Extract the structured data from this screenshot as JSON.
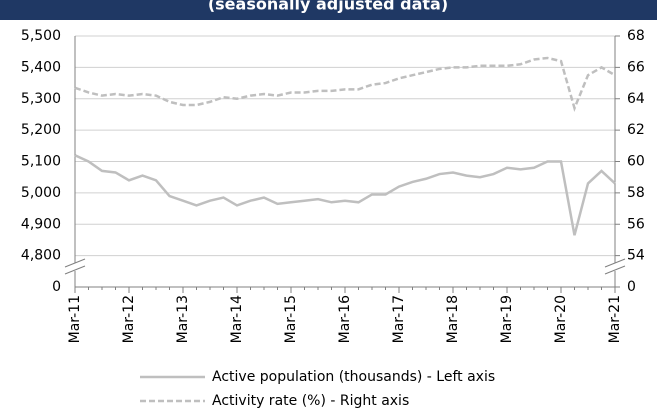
{
  "chart_data": {
    "type": "line",
    "title": "(seasonally adjusted data)",
    "categories": [
      "Mar-11",
      null,
      null,
      null,
      "Mar-12",
      null,
      null,
      null,
      "Mar-13",
      null,
      null,
      null,
      "Mar-14",
      null,
      null,
      null,
      "Mar-15",
      null,
      null,
      null,
      "Mar-16",
      null,
      null,
      null,
      "Mar-17",
      null,
      null,
      null,
      "Mar-18",
      null,
      null,
      null,
      "Mar-19",
      null,
      null,
      null,
      "Mar-20",
      null,
      null,
      null,
      "Mar-21"
    ],
    "series": [
      {
        "name": "Active population (thousands) - Left axis",
        "color": "#bfbfbf",
        "dash": false,
        "values": [
          5120,
          5100,
          5070,
          5065,
          5040,
          5055,
          5040,
          4990,
          4975,
          4960,
          4975,
          4985,
          4960,
          4975,
          4985,
          4965,
          4970,
          4975,
          4980,
          4970,
          4975,
          4970,
          4995,
          4995,
          5020,
          5035,
          5045,
          5060,
          5065,
          5055,
          5050,
          5060,
          5080,
          5075,
          5080,
          5100,
          5100,
          4865,
          5030,
          5070,
          5030
        ]
      },
      {
        "name": "Activity rate (%) - Right axis",
        "color": "#bfbfbf",
        "dash": true,
        "axis": "y2",
        "values": [
          64.7,
          64.4,
          64.2,
          64.3,
          64.2,
          64.3,
          64.2,
          63.8,
          63.6,
          63.6,
          63.8,
          64.1,
          64.0,
          64.2,
          64.3,
          64.2,
          64.4,
          64.4,
          64.5,
          64.5,
          64.6,
          64.6,
          64.9,
          65.0,
          65.3,
          65.5,
          65.7,
          65.9,
          66.0,
          66.0,
          66.1,
          66.1,
          66.1,
          66.2,
          66.5,
          66.6,
          66.4,
          63.4,
          65.5,
          66.0,
          65.5
        ]
      }
    ],
    "ylim": [
      4700,
      5500
    ],
    "yticks": [
      0,
      {
        "value": 4800,
        "label": "4,800"
      },
      {
        "value": 4900,
        "label": "4,900"
      },
      {
        "value": 5000,
        "label": "5,000"
      },
      {
        "value": 5100,
        "label": "5,100"
      },
      {
        "value": 5200,
        "label": "5,200"
      },
      {
        "value": 5300,
        "label": "5,300"
      },
      {
        "value": 5400,
        "label": "5,400"
      },
      {
        "value": 5500,
        "label": "5,500"
      }
    ],
    "y2lim": [
      52,
      68
    ],
    "y2ticks": [
      0,
      54,
      56,
      58,
      60,
      62,
      64,
      66,
      68
    ],
    "axis_break": true,
    "grid": true
  }
}
